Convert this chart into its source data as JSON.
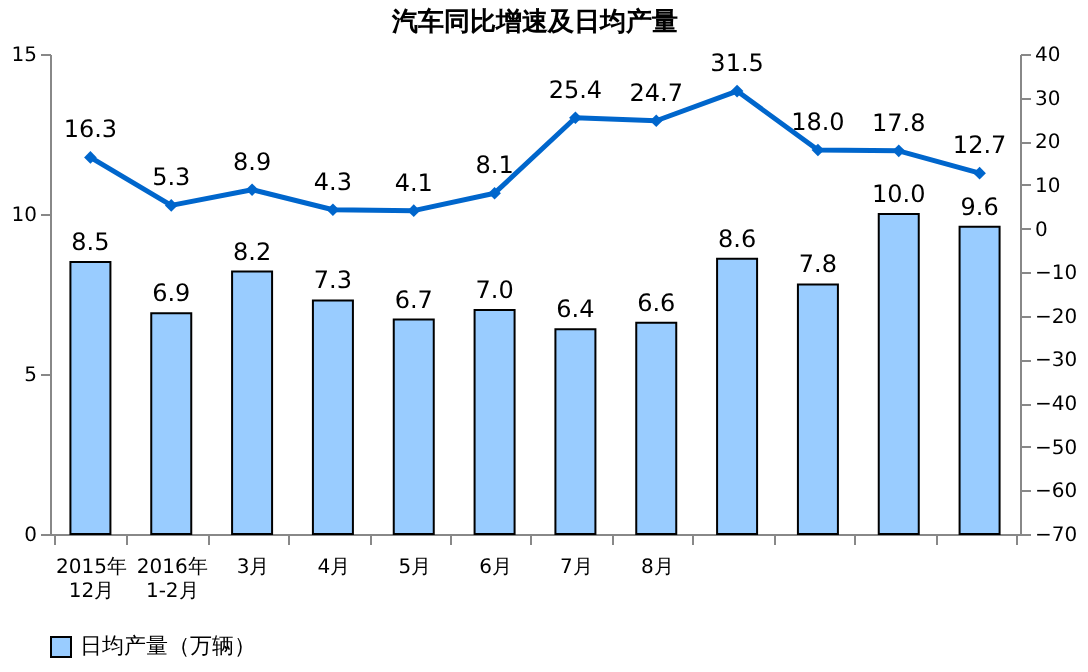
{
  "chart_data": {
    "type": "bar",
    "title": "汽车同比增速及日均产量",
    "categories": [
      [
        "2015年",
        "12月"
      ],
      [
        "2016年",
        "1-2月"
      ],
      "3月",
      "4月",
      "5月",
      "6月",
      "7月",
      "8月",
      null,
      null,
      null,
      null
    ],
    "series": [
      {
        "name": "日均产量（万辆）",
        "color": "#99ccff",
        "values": [
          8.5,
          6.9,
          8.2,
          7.3,
          6.7,
          7.0,
          6.4,
          6.6,
          8.6,
          7.8,
          10.0,
          9.6
        ],
        "value_labels": [
          "8.5",
          "6.9",
          "8.2",
          "7.3",
          "6.7",
          "7.0",
          "6.4",
          "6.6",
          "8.6",
          "7.8",
          "10.0",
          "9.6"
        ]
      },
      {
        "type": "line",
        "axis": "y2",
        "color": "#0066cc",
        "marker": "diamond",
        "values": [
          16.3,
          5.3,
          8.9,
          4.3,
          4.1,
          8.1,
          25.4,
          24.7,
          31.5,
          18.0,
          17.8,
          12.7
        ],
        "value_labels": [
          "16.3",
          "5.3",
          "8.9",
          "4.3",
          "4.1",
          "8.1",
          "25.4",
          "24.7",
          "31.5",
          "18.0",
          "17.8",
          "12.7"
        ]
      }
    ],
    "ylim": [
      0,
      15
    ],
    "yticks": [
      0,
      5,
      10,
      15
    ],
    "y2lim": [
      -70,
      40
    ],
    "y2ticks": [
      -70,
      -60,
      -50,
      -40,
      -30,
      -20,
      -10,
      0,
      10,
      20,
      30,
      40
    ],
    "grid": false,
    "legend": "bottom"
  }
}
